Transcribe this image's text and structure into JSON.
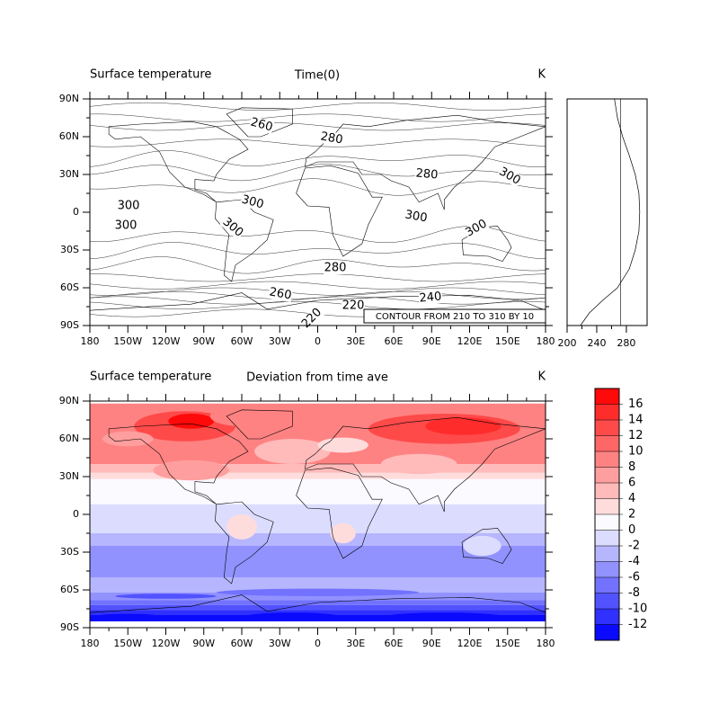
{
  "top_panel": {
    "left_title": "Surface temperature",
    "center_title": "Time(0)",
    "right_title": "K",
    "lat_ticks": [
      "90N",
      "60N",
      "30N",
      "0",
      "30S",
      "60S",
      "90S"
    ],
    "lon_ticks": [
      "180",
      "150W",
      "120W",
      "90W",
      "60W",
      "30W",
      "0",
      "30E",
      "60E",
      "90E",
      "120E",
      "150E",
      "180"
    ],
    "contour_labels": [
      260,
      280,
      280,
      300,
      300,
      300,
      300,
      300,
      300,
      300,
      280,
      260,
      240,
      220,
      220
    ],
    "info_box": "CONTOUR FROM 210 TO 310 BY 10"
  },
  "zonal_panel": {
    "xlim": [
      200,
      308
    ],
    "xticks": [
      200,
      240,
      280
    ],
    "lat": [
      90,
      75,
      60,
      45,
      30,
      15,
      0,
      -15,
      -30,
      -45,
      -60,
      -70,
      -80,
      -90
    ],
    "values": [
      264,
      268,
      275,
      284,
      292,
      297,
      298,
      297,
      292,
      284,
      268,
      248,
      230,
      218
    ],
    "reference_line": 272
  },
  "bottom_panel": {
    "left_title": "Surface temperature",
    "center_title": "Deviation from time ave",
    "right_title": "K",
    "lat_ticks": [
      "90N",
      "60N",
      "30N",
      "0",
      "30S",
      "60S",
      "90S"
    ],
    "lon_ticks": [
      "180",
      "150W",
      "120W",
      "90W",
      "60W",
      "30W",
      "0",
      "30E",
      "60E",
      "90E",
      "120E",
      "150E",
      "180"
    ],
    "colorbar": {
      "ticks": [
        16,
        14,
        12,
        10,
        8,
        6,
        4,
        2,
        0,
        -2,
        -4,
        -6,
        -8,
        -10,
        -12
      ],
      "colors": [
        "#ff0a0a",
        "#ff2c2c",
        "#ff4a4a",
        "#ff6666",
        "#ff8282",
        "#ff9e9e",
        "#ffbaba",
        "#ffdcdc",
        "#fafaff",
        "#dcdcff",
        "#b6b6ff",
        "#9292ff",
        "#7272ff",
        "#5252ff",
        "#3030ff",
        "#0a0aff"
      ]
    }
  }
}
